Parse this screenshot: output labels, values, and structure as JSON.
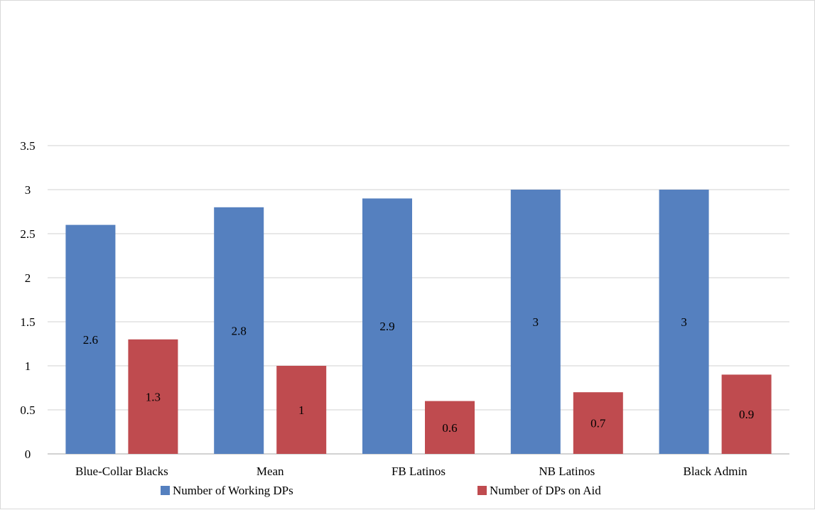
{
  "chart_data": {
    "type": "bar",
    "categories": [
      "Blue-Collar Blacks",
      "Mean",
      "FB Latinos",
      "NB Latinos",
      "Black Admin"
    ],
    "series": [
      {
        "name": "Number of Working DPs",
        "values": [
          2.6,
          2.8,
          2.9,
          3,
          3
        ],
        "labels": [
          "2.6",
          "2.8",
          "2.9",
          "3",
          "3"
        ],
        "color": "#5580BF"
      },
      {
        "name": "Number of DPs on Aid",
        "values": [
          1.3,
          1,
          0.6,
          0.7,
          0.9
        ],
        "labels": [
          "1.3",
          "1",
          "0.6",
          "0.7",
          "0.9"
        ],
        "color": "#BF4B4F"
      }
    ],
    "title": "",
    "xlabel": "",
    "ylabel": "",
    "ylim": [
      0,
      3.5
    ],
    "yticks": [
      "0",
      "0.5",
      "1",
      "1.5",
      "2",
      "2.5",
      "3",
      "3.5"
    ],
    "ytick_values": [
      0,
      0.5,
      1,
      1.5,
      2,
      2.5,
      3,
      3.5
    ],
    "grid": true,
    "legend_position": "bottom"
  }
}
